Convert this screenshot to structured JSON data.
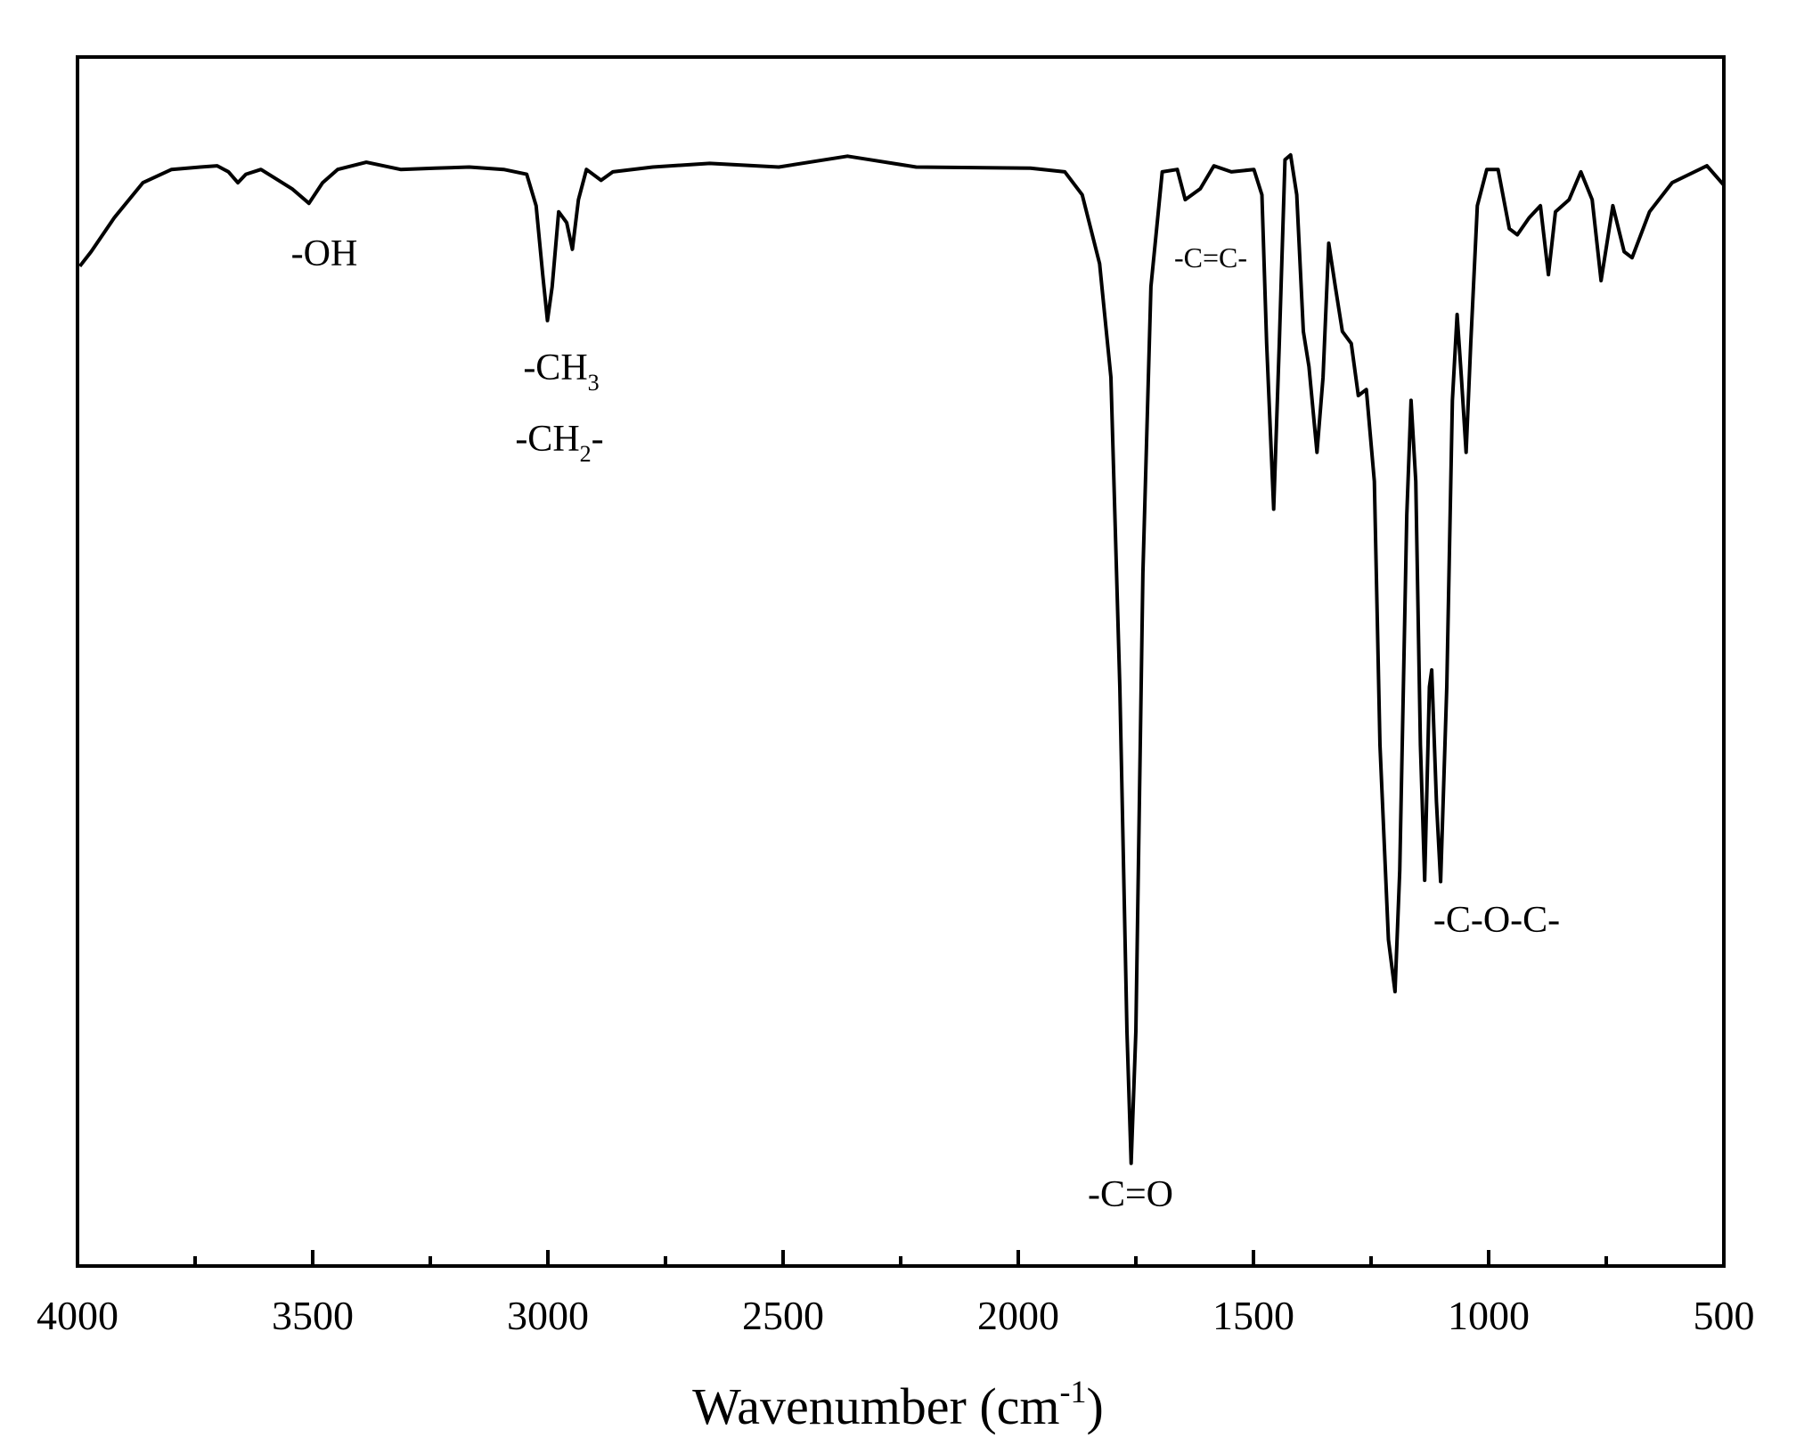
{
  "chart_data": {
    "type": "line",
    "x_label": {
      "text": "Wavenumber (cm",
      "sup": "-1",
      "tail": ")"
    },
    "color": "#000000",
    "xlim": [
      4000,
      500
    ],
    "ylim": [
      0,
      100
    ],
    "xticks": [
      4000,
      3500,
      3000,
      2500,
      2000,
      1500,
      1000,
      500
    ],
    "xticks_minor": [
      3750,
      3250,
      2750,
      2250,
      1750,
      1250,
      750
    ],
    "x": [
      3995,
      3971,
      3922,
      3861,
      3800,
      3739,
      3703,
      3679,
      3659,
      3642,
      3610,
      3581,
      3544,
      3508,
      3479,
      3447,
      3386,
      3313,
      3240,
      3167,
      3094,
      3045,
      3025,
      3011,
      3001,
      2991,
      2977,
      2960,
      2948,
      2935,
      2918,
      2887,
      2862,
      2777,
      2656,
      2509,
      2363,
      2315,
      2217,
      1974,
      1901,
      1864,
      1827,
      1803,
      1784,
      1769,
      1760,
      1750,
      1735,
      1718,
      1694,
      1662,
      1645,
      1613,
      1584,
      1547,
      1499,
      1482,
      1472,
      1457,
      1445,
      1433,
      1421,
      1408,
      1394,
      1382,
      1365,
      1352,
      1340,
      1326,
      1311,
      1292,
      1277,
      1260,
      1243,
      1231,
      1213,
      1199,
      1189,
      1174,
      1165,
      1155,
      1145,
      1136,
      1126,
      1121,
      1111,
      1102,
      1089,
      1077,
      1067,
      1058,
      1048,
      1038,
      1024,
      1004,
      980,
      956,
      939,
      914,
      890,
      873,
      858,
      829,
      804,
      780,
      761,
      736,
      712,
      695,
      658,
      610,
      536,
      500
    ],
    "values": [
      82.7,
      83.9,
      86.7,
      89.6,
      90.7,
      90.9,
      91.0,
      90.5,
      89.6,
      90.3,
      90.7,
      90.0,
      89.1,
      87.9,
      89.6,
      90.7,
      91.3,
      90.7,
      90.8,
      90.9,
      90.7,
      90.3,
      87.7,
      82.0,
      78.2,
      81.0,
      87.2,
      86.3,
      84.1,
      88.2,
      90.7,
      89.8,
      90.5,
      90.9,
      91.2,
      90.9,
      91.8,
      91.5,
      90.9,
      90.8,
      90.5,
      88.6,
      82.9,
      73.5,
      47.9,
      19.4,
      8.5,
      19.4,
      57.3,
      81.0,
      90.5,
      90.7,
      88.2,
      89.1,
      91.0,
      90.5,
      90.7,
      88.6,
      76.3,
      62.6,
      76.3,
      91.5,
      91.9,
      88.6,
      77.3,
      74.4,
      67.3,
      73.5,
      84.6,
      81.0,
      77.3,
      76.3,
      72.0,
      72.5,
      64.9,
      43.1,
      27.0,
      22.7,
      32.7,
      62.1,
      71.6,
      64.9,
      43.1,
      31.9,
      47.9,
      49.3,
      38.4,
      31.8,
      47.9,
      71.6,
      78.7,
      73.5,
      67.3,
      76.3,
      87.7,
      90.7,
      90.7,
      85.8,
      85.3,
      86.7,
      87.7,
      82.0,
      87.2,
      88.2,
      90.5,
      88.2,
      81.5,
      87.7,
      83.9,
      83.4,
      87.2,
      89.6,
      91.0,
      89.4
    ],
    "annotations": [
      {
        "text": "-OH"
      },
      {
        "text": "-CH",
        "sub": "3"
      },
      {
        "text": "-CH",
        "sub": "2",
        "tail": "-"
      },
      {
        "text": "-C=C-"
      },
      {
        "text": "-C=O"
      },
      {
        "text": "-C-O-C-"
      }
    ]
  }
}
